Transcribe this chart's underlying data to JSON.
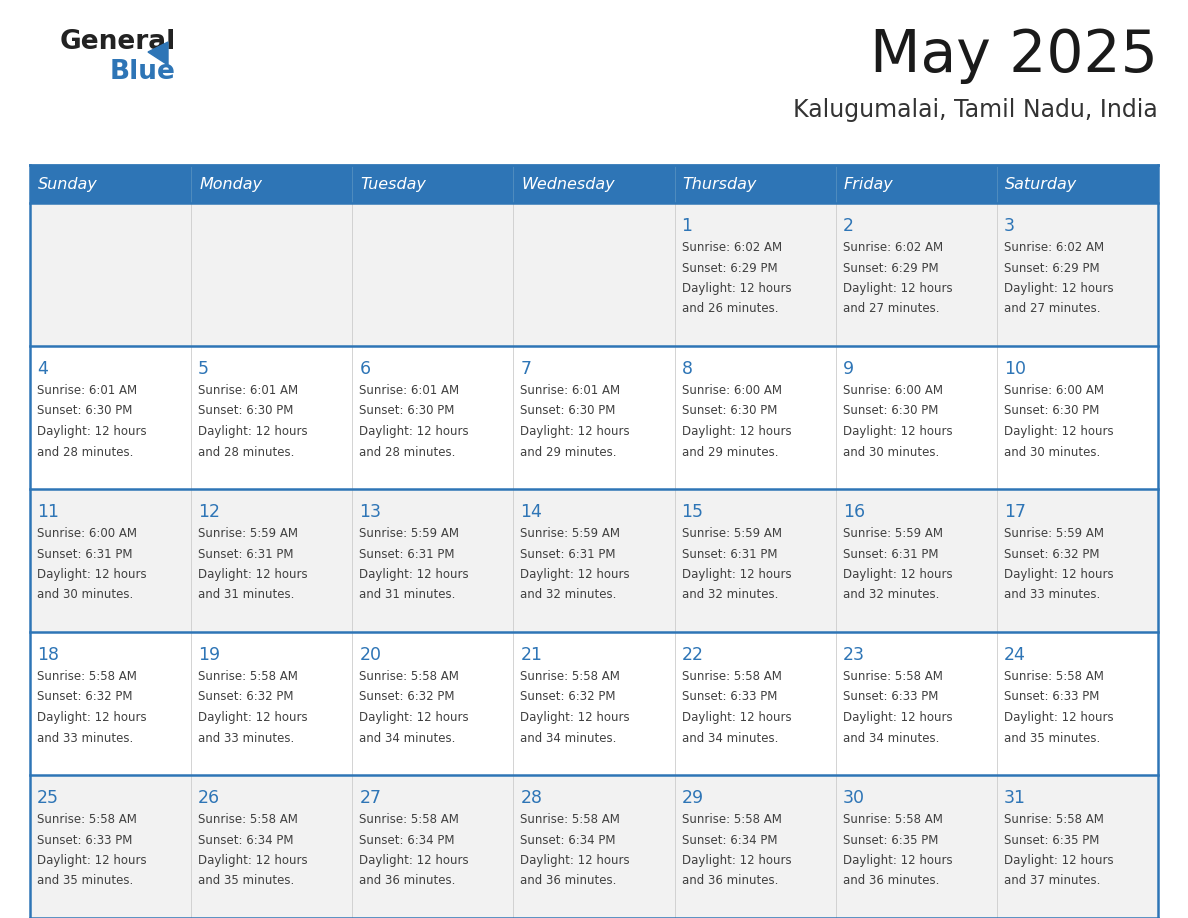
{
  "title": "May 2025",
  "subtitle": "Kalugumalai, Tamil Nadu, India",
  "days_of_week": [
    "Sunday",
    "Monday",
    "Tuesday",
    "Wednesday",
    "Thursday",
    "Friday",
    "Saturday"
  ],
  "header_bg": "#2E75B6",
  "header_text": "#FFFFFF",
  "cell_bg_odd": "#F2F2F2",
  "cell_bg_even": "#FFFFFF",
  "day_number_color": "#2E75B6",
  "cell_text_color": "#404040",
  "row_line_color": "#2E75B6",
  "col_line_color": "#CCCCCC",
  "title_color": "#1a1a1a",
  "subtitle_color": "#333333",
  "logo_general_color": "#222222",
  "logo_blue_color": "#2E75B6",
  "weeks": [
    [
      {
        "date": "",
        "sunrise": "",
        "sunset": "",
        "daylight_h": "",
        "daylight_m": ""
      },
      {
        "date": "",
        "sunrise": "",
        "sunset": "",
        "daylight_h": "",
        "daylight_m": ""
      },
      {
        "date": "",
        "sunrise": "",
        "sunset": "",
        "daylight_h": "",
        "daylight_m": ""
      },
      {
        "date": "",
        "sunrise": "",
        "sunset": "",
        "daylight_h": "",
        "daylight_m": ""
      },
      {
        "date": "1",
        "sunrise": "6:02 AM",
        "sunset": "6:29 PM",
        "daylight_h": "12 hours",
        "daylight_m": "and 26 minutes."
      },
      {
        "date": "2",
        "sunrise": "6:02 AM",
        "sunset": "6:29 PM",
        "daylight_h": "12 hours",
        "daylight_m": "and 27 minutes."
      },
      {
        "date": "3",
        "sunrise": "6:02 AM",
        "sunset": "6:29 PM",
        "daylight_h": "12 hours",
        "daylight_m": "and 27 minutes."
      }
    ],
    [
      {
        "date": "4",
        "sunrise": "6:01 AM",
        "sunset": "6:30 PM",
        "daylight_h": "12 hours",
        "daylight_m": "and 28 minutes."
      },
      {
        "date": "5",
        "sunrise": "6:01 AM",
        "sunset": "6:30 PM",
        "daylight_h": "12 hours",
        "daylight_m": "and 28 minutes."
      },
      {
        "date": "6",
        "sunrise": "6:01 AM",
        "sunset": "6:30 PM",
        "daylight_h": "12 hours",
        "daylight_m": "and 28 minutes."
      },
      {
        "date": "7",
        "sunrise": "6:01 AM",
        "sunset": "6:30 PM",
        "daylight_h": "12 hours",
        "daylight_m": "and 29 minutes."
      },
      {
        "date": "8",
        "sunrise": "6:00 AM",
        "sunset": "6:30 PM",
        "daylight_h": "12 hours",
        "daylight_m": "and 29 minutes."
      },
      {
        "date": "9",
        "sunrise": "6:00 AM",
        "sunset": "6:30 PM",
        "daylight_h": "12 hours",
        "daylight_m": "and 30 minutes."
      },
      {
        "date": "10",
        "sunrise": "6:00 AM",
        "sunset": "6:30 PM",
        "daylight_h": "12 hours",
        "daylight_m": "and 30 minutes."
      }
    ],
    [
      {
        "date": "11",
        "sunrise": "6:00 AM",
        "sunset": "6:31 PM",
        "daylight_h": "12 hours",
        "daylight_m": "and 30 minutes."
      },
      {
        "date": "12",
        "sunrise": "5:59 AM",
        "sunset": "6:31 PM",
        "daylight_h": "12 hours",
        "daylight_m": "and 31 minutes."
      },
      {
        "date": "13",
        "sunrise": "5:59 AM",
        "sunset": "6:31 PM",
        "daylight_h": "12 hours",
        "daylight_m": "and 31 minutes."
      },
      {
        "date": "14",
        "sunrise": "5:59 AM",
        "sunset": "6:31 PM",
        "daylight_h": "12 hours",
        "daylight_m": "and 32 minutes."
      },
      {
        "date": "15",
        "sunrise": "5:59 AM",
        "sunset": "6:31 PM",
        "daylight_h": "12 hours",
        "daylight_m": "and 32 minutes."
      },
      {
        "date": "16",
        "sunrise": "5:59 AM",
        "sunset": "6:31 PM",
        "daylight_h": "12 hours",
        "daylight_m": "and 32 minutes."
      },
      {
        "date": "17",
        "sunrise": "5:59 AM",
        "sunset": "6:32 PM",
        "daylight_h": "12 hours",
        "daylight_m": "and 33 minutes."
      }
    ],
    [
      {
        "date": "18",
        "sunrise": "5:58 AM",
        "sunset": "6:32 PM",
        "daylight_h": "12 hours",
        "daylight_m": "and 33 minutes."
      },
      {
        "date": "19",
        "sunrise": "5:58 AM",
        "sunset": "6:32 PM",
        "daylight_h": "12 hours",
        "daylight_m": "and 33 minutes."
      },
      {
        "date": "20",
        "sunrise": "5:58 AM",
        "sunset": "6:32 PM",
        "daylight_h": "12 hours",
        "daylight_m": "and 34 minutes."
      },
      {
        "date": "21",
        "sunrise": "5:58 AM",
        "sunset": "6:32 PM",
        "daylight_h": "12 hours",
        "daylight_m": "and 34 minutes."
      },
      {
        "date": "22",
        "sunrise": "5:58 AM",
        "sunset": "6:33 PM",
        "daylight_h": "12 hours",
        "daylight_m": "and 34 minutes."
      },
      {
        "date": "23",
        "sunrise": "5:58 AM",
        "sunset": "6:33 PM",
        "daylight_h": "12 hours",
        "daylight_m": "and 34 minutes."
      },
      {
        "date": "24",
        "sunrise": "5:58 AM",
        "sunset": "6:33 PM",
        "daylight_h": "12 hours",
        "daylight_m": "and 35 minutes."
      }
    ],
    [
      {
        "date": "25",
        "sunrise": "5:58 AM",
        "sunset": "6:33 PM",
        "daylight_h": "12 hours",
        "daylight_m": "and 35 minutes."
      },
      {
        "date": "26",
        "sunrise": "5:58 AM",
        "sunset": "6:34 PM",
        "daylight_h": "12 hours",
        "daylight_m": "and 35 minutes."
      },
      {
        "date": "27",
        "sunrise": "5:58 AM",
        "sunset": "6:34 PM",
        "daylight_h": "12 hours",
        "daylight_m": "and 36 minutes."
      },
      {
        "date": "28",
        "sunrise": "5:58 AM",
        "sunset": "6:34 PM",
        "daylight_h": "12 hours",
        "daylight_m": "and 36 minutes."
      },
      {
        "date": "29",
        "sunrise": "5:58 AM",
        "sunset": "6:34 PM",
        "daylight_h": "12 hours",
        "daylight_m": "and 36 minutes."
      },
      {
        "date": "30",
        "sunrise": "5:58 AM",
        "sunset": "6:35 PM",
        "daylight_h": "12 hours",
        "daylight_m": "and 36 minutes."
      },
      {
        "date": "31",
        "sunrise": "5:58 AM",
        "sunset": "6:35 PM",
        "daylight_h": "12 hours",
        "daylight_m": "and 37 minutes."
      }
    ]
  ]
}
